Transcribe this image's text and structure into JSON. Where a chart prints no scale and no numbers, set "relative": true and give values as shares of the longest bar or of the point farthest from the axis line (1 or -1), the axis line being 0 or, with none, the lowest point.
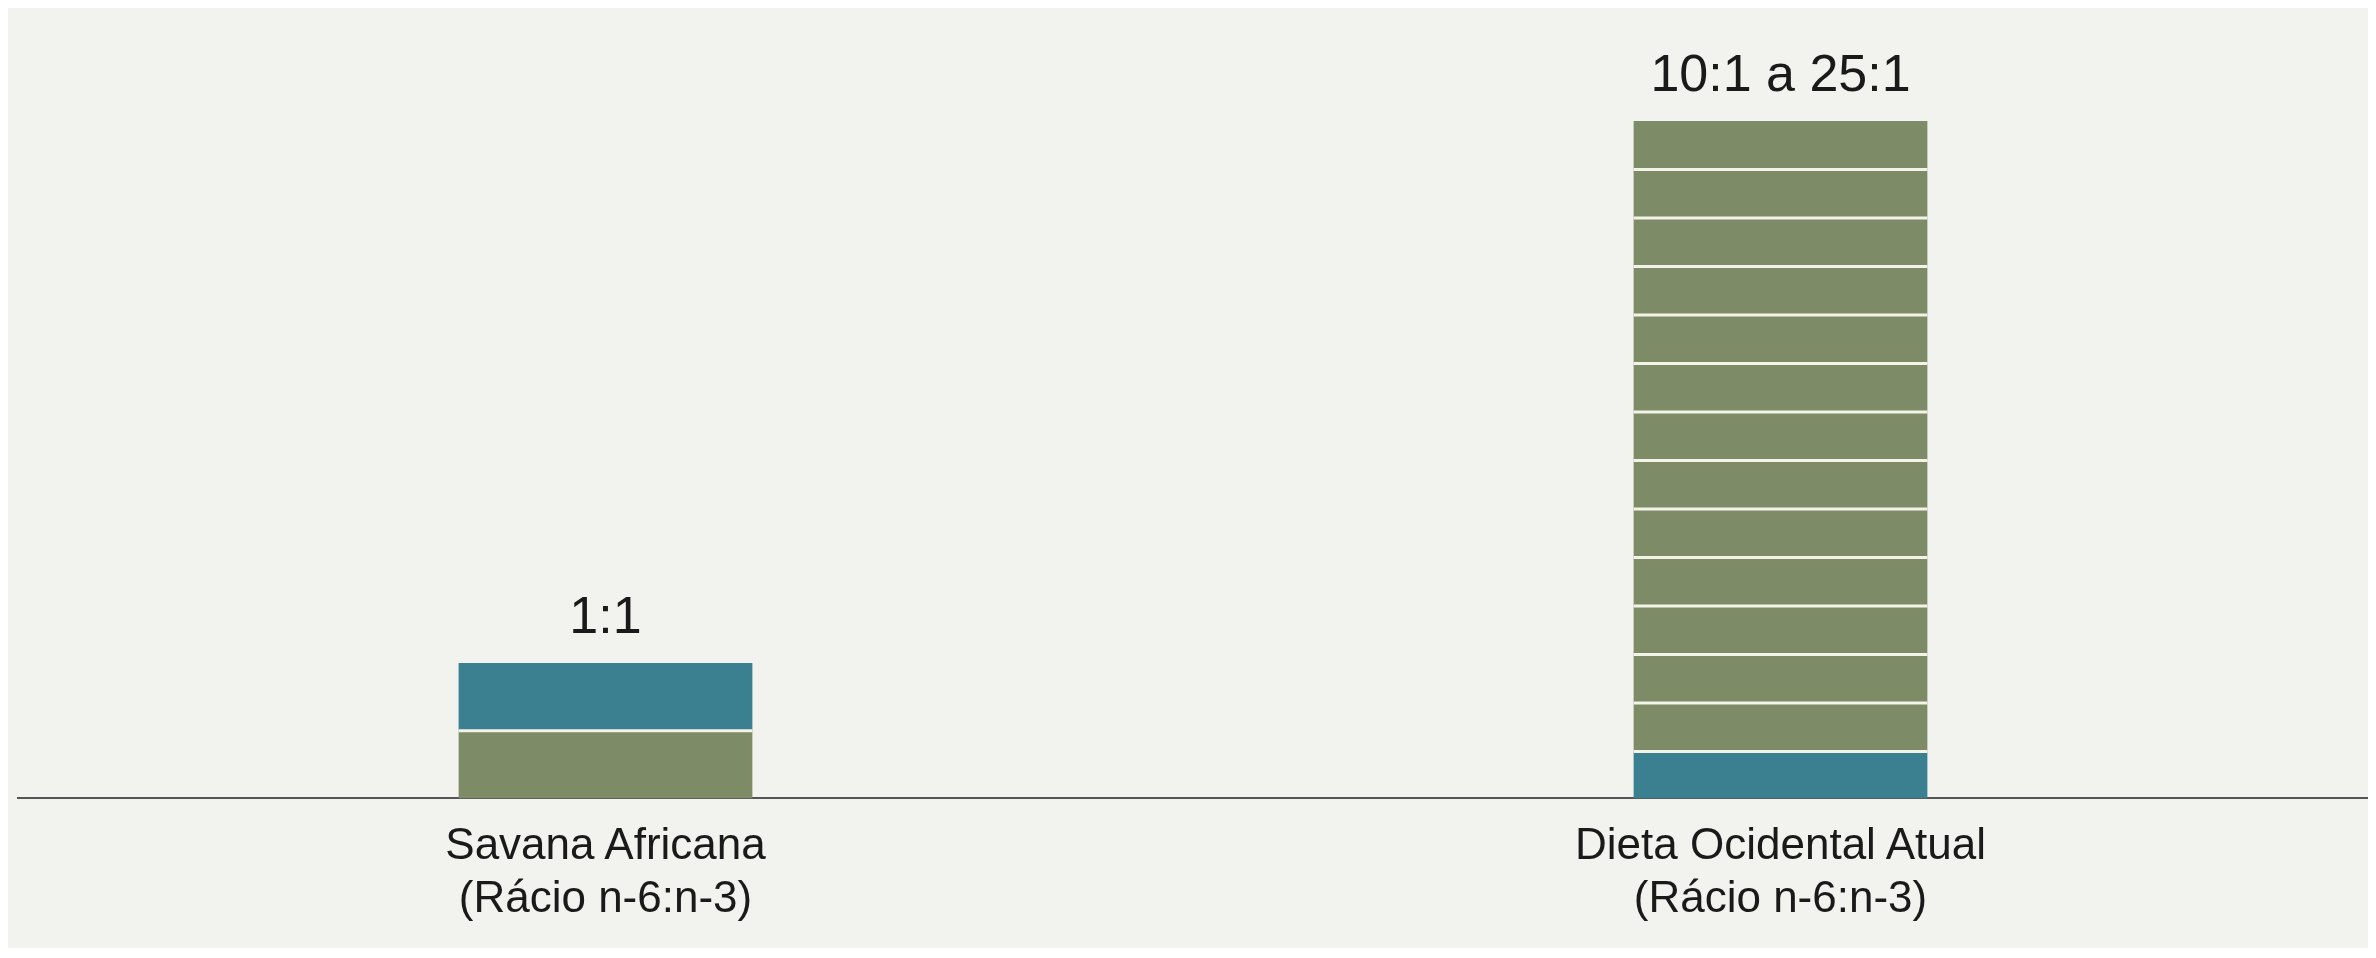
{
  "chart_data": {
    "type": "bar",
    "stacked": true,
    "relative": true,
    "grid": false,
    "legend": false,
    "categories": [
      "Savana Africana\n(Rácio n-6:n-3)",
      "Dieta Ocidental Atual\n(Rácio n-6:n-3)"
    ],
    "totals": [
      "1:1",
      "10:1 a 25:1"
    ],
    "series": [
      {
        "color": "#7d8c67",
        "values": [
          0.1,
          null
        ]
      },
      {
        "color": "#3a8090",
        "values": [
          0.1,
          0.0692
        ]
      },
      {
        "color": "#7d8c67",
        "values": [
          null,
          0.0716
        ]
      },
      {
        "color": "#7d8c67",
        "values": [
          null,
          0.0716
        ]
      },
      {
        "color": "#7d8c67",
        "values": [
          null,
          0.0716
        ]
      },
      {
        "color": "#7d8c67",
        "values": [
          null,
          0.0716
        ]
      },
      {
        "color": "#7d8c67",
        "values": [
          null,
          0.0716
        ]
      },
      {
        "color": "#7d8c67",
        "values": [
          null,
          0.0716
        ]
      },
      {
        "color": "#7d8c67",
        "values": [
          null,
          0.0716
        ]
      },
      {
        "color": "#7d8c67",
        "values": [
          null,
          0.0716
        ]
      },
      {
        "color": "#7d8c67",
        "values": [
          null,
          0.0716
        ]
      },
      {
        "color": "#7d8c67",
        "values": [
          null,
          0.0716
        ]
      },
      {
        "color": "#7d8c67",
        "values": [
          null,
          0.0716
        ]
      },
      {
        "color": "#7d8c67",
        "values": [
          null,
          0.0716
        ]
      },
      {
        "color": "#7d8c67",
        "values": [
          null,
          0.0716
        ]
      }
    ]
  }
}
